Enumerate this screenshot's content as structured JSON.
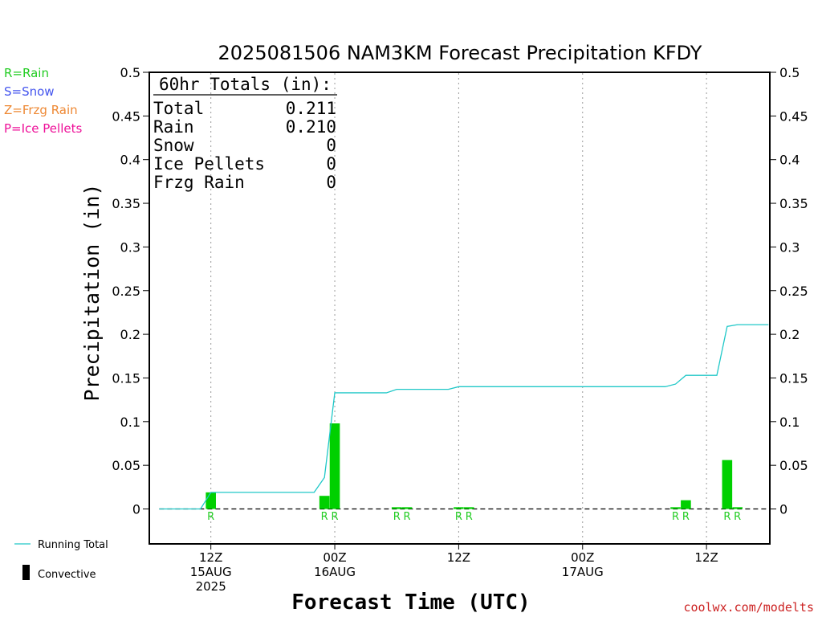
{
  "chart_data": {
    "type": "bar",
    "title": "2025081506 NAM3KM Forecast Precipitation KFDY",
    "xlabel": "Forecast Time (UTC)",
    "ylabel": "Precipitation (in)",
    "ylim": [
      -0.04,
      0.5
    ],
    "y_ticks": [
      "0.5",
      "0.45",
      "0.4",
      "0.35",
      "0.3",
      "0.25",
      "0.2",
      "0.15",
      "0.1",
      "0.05",
      "0"
    ],
    "x_ticks": [
      {
        "hour": 6,
        "lines": [
          "12Z",
          "15AUG",
          "2025"
        ]
      },
      {
        "hour": 18,
        "lines": [
          "00Z",
          "16AUG"
        ]
      },
      {
        "hour": 30,
        "lines": [
          "12Z"
        ]
      },
      {
        "hour": 42,
        "lines": [
          "00Z",
          "17AUG"
        ]
      },
      {
        "hour": 54,
        "lines": [
          "12Z"
        ]
      }
    ],
    "bars": [
      {
        "hour": 6,
        "value": 0.019
      },
      {
        "hour": 17,
        "value": 0.015
      },
      {
        "hour": 18,
        "value": 0.098
      },
      {
        "hour": 24,
        "value": 0.002
      },
      {
        "hour": 25,
        "value": 0.002
      },
      {
        "hour": 30,
        "value": 0.002
      },
      {
        "hour": 31,
        "value": 0.002
      },
      {
        "hour": 51,
        "value": 0.002
      },
      {
        "hour": 52,
        "value": 0.01
      },
      {
        "hour": 56,
        "value": 0.056
      },
      {
        "hour": 57,
        "value": 0.002
      }
    ],
    "type_markers": [
      {
        "hour": 6,
        "label": "R"
      },
      {
        "hour": 17,
        "label": "R"
      },
      {
        "hour": 18,
        "label": "R"
      },
      {
        "hour": 24,
        "label": "R"
      },
      {
        "hour": 25,
        "label": "R"
      },
      {
        "hour": 30,
        "label": "R"
      },
      {
        "hour": 31,
        "label": "R"
      },
      {
        "hour": 51,
        "label": "R"
      },
      {
        "hour": 52,
        "label": "R"
      },
      {
        "hour": 56,
        "label": "R"
      },
      {
        "hour": 57,
        "label": "R"
      }
    ],
    "running_total": {
      "name": "Running Total",
      "hours": [
        1,
        5,
        6,
        15,
        16,
        17,
        18,
        23,
        24,
        29,
        30,
        50,
        51,
        52,
        54,
        55,
        56,
        57,
        58,
        60
      ],
      "values": [
        0,
        0,
        0.019,
        0.019,
        0.019,
        0.036,
        0.133,
        0.133,
        0.137,
        0.137,
        0.14,
        0.14,
        0.143,
        0.153,
        0.153,
        0.153,
        0.209,
        0.211,
        0.211,
        0.211
      ]
    },
    "totals_box": {
      "header": "60hr Totals (in):",
      "rows": [
        {
          "label": "Total",
          "value": "0.211"
        },
        {
          "label": "Rain",
          "value": "0.210"
        },
        {
          "label": "Snow",
          "value": "0"
        },
        {
          "label": "Ice Pellets",
          "value": "0"
        },
        {
          "label": "Frzg Rain",
          "value": "0"
        }
      ]
    },
    "precip_key": [
      {
        "text": "R=Rain",
        "color": "#22cc22"
      },
      {
        "text": "S=Snow",
        "color": "#4455ee"
      },
      {
        "text": "Z=Frzg Rain",
        "color": "#ee8833"
      },
      {
        "text": "P=Ice Pellets",
        "color": "#ee1199"
      }
    ],
    "legend": {
      "line_label": "Running Total",
      "bar_label": "Convective",
      "placement": "bottom-left"
    },
    "colors": {
      "bar": "#00d000",
      "line": "#20c8c8",
      "marker": "#22cc22",
      "axis": "#000000",
      "grid": "#999999",
      "credit": "#cc2222"
    },
    "credit": "coolwx.com/modelts"
  }
}
